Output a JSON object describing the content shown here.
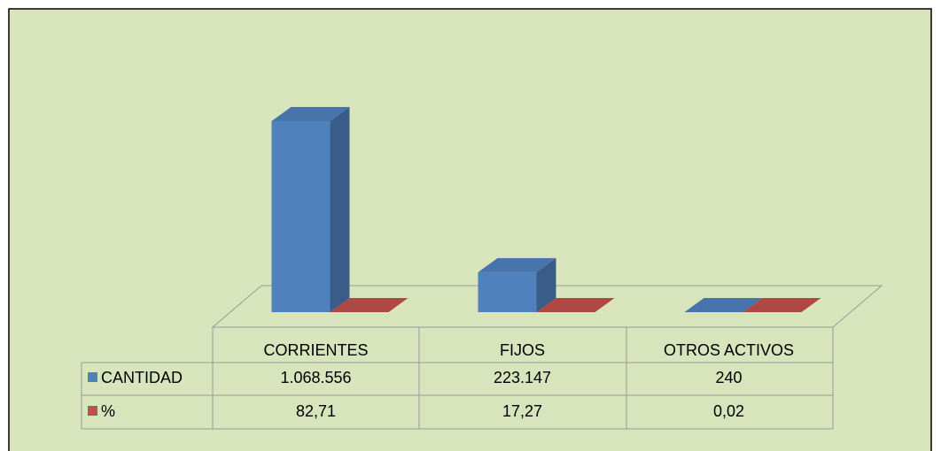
{
  "chart_data": {
    "type": "bar3d",
    "categories": [
      "CORRIENTES",
      "FIJOS",
      "OTROS ACTIVOS"
    ],
    "series": [
      {
        "name": "CANTIDAD",
        "color": "#4f81bd",
        "values": [
          1068556,
          223147,
          240
        ],
        "value_labels": [
          "1.068.556",
          "223.147",
          "240"
        ]
      },
      {
        "name": "%",
        "color": "#c0504d",
        "values": [
          82.71,
          17.27,
          0.02
        ],
        "value_labels": [
          "82,71",
          "17,27",
          "0,02"
        ]
      }
    ]
  }
}
